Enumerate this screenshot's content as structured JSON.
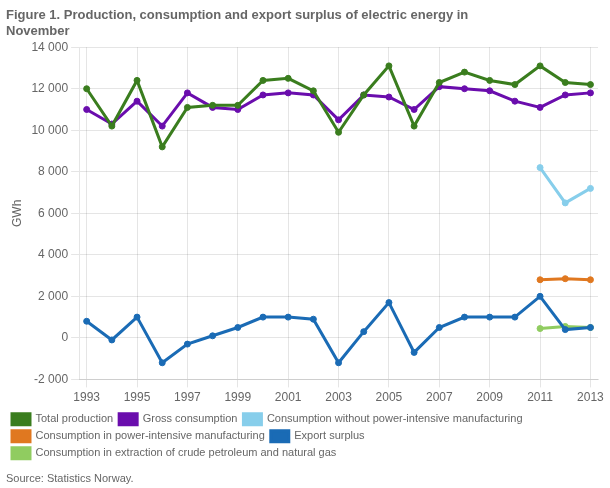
{
  "chart_data": {
    "type": "line",
    "title": "Figure 1. Production, consumption and export surplus of electric energy in\nNovember",
    "y_label": "GWh",
    "annotations": [
      "Source: Statistics Norway."
    ],
    "x": [
      1993,
      1994,
      1995,
      1996,
      1997,
      1998,
      1999,
      2000,
      2001,
      2002,
      2003,
      2004,
      2005,
      2006,
      2007,
      2008,
      2009,
      2010,
      2011,
      2012,
      2013
    ],
    "series": [
      {
        "name": "Total production",
        "color": "#3a7d1e",
        "values": [
          12000,
          10200,
          12400,
          9200,
          11100,
          11200,
          11200,
          12400,
          12500,
          11900,
          9900,
          11700,
          13100,
          10200,
          12300,
          12800,
          12400,
          12200,
          13100,
          12300,
          12200
        ]
      },
      {
        "name": "Gross consumption",
        "color": "#6a0dad",
        "values": [
          11000,
          10300,
          11400,
          10200,
          11800,
          11100,
          11000,
          11700,
          11800,
          11700,
          10500,
          11700,
          11600,
          11000,
          12100,
          12000,
          11900,
          11400,
          11100,
          11700,
          11800
        ]
      },
      {
        "name": "Consumption without power-intensive manufacturing",
        "color": "#87ceeb",
        "values": [
          null,
          null,
          null,
          null,
          null,
          null,
          null,
          null,
          null,
          null,
          null,
          null,
          null,
          null,
          null,
          null,
          null,
          null,
          8200,
          6500,
          7200
        ]
      },
      {
        "name": "Consumption in power-intensive manufacturing",
        "color": "#e07820",
        "values": [
          null,
          null,
          null,
          null,
          null,
          null,
          null,
          null,
          null,
          null,
          null,
          null,
          null,
          null,
          null,
          null,
          null,
          null,
          2800,
          2850,
          2800
        ]
      },
      {
        "name": "Export surplus",
        "color": "#1a6bb5",
        "values": [
          800,
          -100,
          1000,
          -1200,
          -300,
          100,
          500,
          1000,
          1000,
          900,
          -1200,
          300,
          1700,
          -700,
          500,
          1000,
          1000,
          1000,
          2000,
          400,
          500
        ]
      },
      {
        "name": "Consumption in extraction of crude petroleum and natural gas",
        "color": "#90cc60",
        "values": [
          null,
          null,
          null,
          null,
          null,
          null,
          null,
          null,
          null,
          null,
          null,
          null,
          null,
          null,
          null,
          null,
          null,
          null,
          450,
          550,
          500
        ]
      }
    ],
    "xlim": [
      1992.7,
      2013.3
    ],
    "xticks": [
      1993,
      1995,
      1997,
      1999,
      2001,
      2003,
      2005,
      2007,
      2009,
      2011,
      2013
    ],
    "ylim": [
      -2000,
      14000
    ],
    "yticks": [
      {
        "value": -2000,
        "label": "-2 000"
      },
      0,
      {
        "value": 2000,
        "label": "2 000"
      },
      {
        "value": 4000,
        "label": "4 000"
      },
      {
        "value": 6000,
        "label": "6 000"
      },
      {
        "value": 8000,
        "label": "8 000"
      },
      {
        "value": 10000,
        "label": "10 000"
      },
      {
        "value": 12000,
        "label": "12 000"
      },
      {
        "value": 14000,
        "label": "14 000"
      }
    ],
    "grid": true,
    "legend": "bottom"
  }
}
